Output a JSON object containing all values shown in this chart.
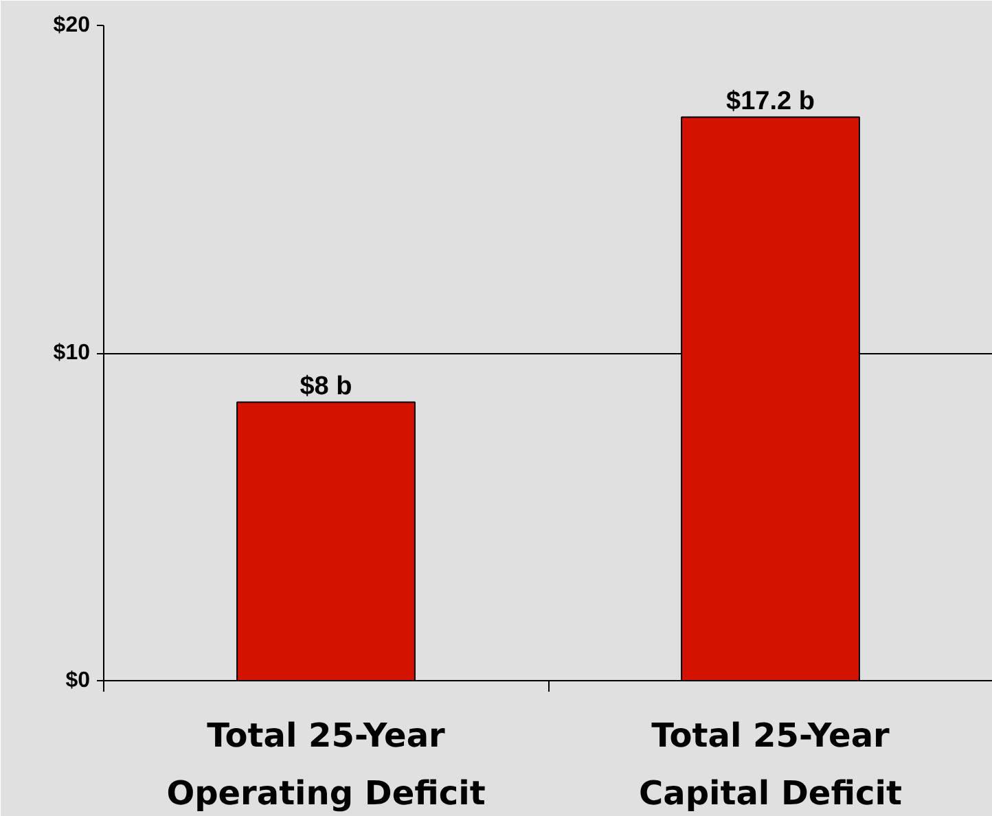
{
  "chart_data": {
    "type": "bar",
    "categories": [
      "Total 25-Year Operating Deficit",
      "Total 25-Year Capital Deficit"
    ],
    "values": [
      8.5,
      17.2
    ],
    "value_labels": [
      "$8 b",
      "$17.2 b"
    ],
    "color": "#d41200",
    "ylim": [
      0,
      20
    ],
    "yticks": [
      {
        "value": 0,
        "label": "$0"
      },
      {
        "value": 10,
        "label": "$10"
      },
      {
        "value": 20,
        "label": "$20"
      }
    ],
    "grid": "y"
  }
}
